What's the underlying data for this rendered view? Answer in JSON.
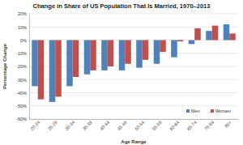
{
  "chart_data": {
    "type": "bar",
    "title": "Change in Share of US Population That Is Married, 1970–2013",
    "x_label": "Age Range",
    "y_label": "Percentage Change",
    "categories": [
      "20-24",
      "25-29",
      "30-34",
      "35-39",
      "40-44",
      "45-49",
      "50-54",
      "55-59",
      "60-64",
      "65-74",
      "75-84",
      "85+"
    ],
    "series": [
      {
        "name": "Men",
        "color": "#4f81bd",
        "values": [
          -35,
          -47,
          -35,
          -26,
          -23,
          -23,
          -21,
          -18,
          -13,
          -3,
          7,
          12
        ]
      },
      {
        "name": "Women",
        "color": "#c0504d",
        "values": [
          -45,
          -43,
          -28,
          -23,
          -20,
          -18,
          -15,
          -9,
          -1,
          9,
          11,
          5
        ]
      }
    ],
    "ylim": [
      -60,
      20
    ],
    "yticks": [
      {
        "value": -60,
        "label": "-60%"
      },
      {
        "value": -50,
        "label": "-50%"
      },
      {
        "value": -40,
        "label": "-40%"
      },
      {
        "value": -30,
        "label": "-30%"
      },
      {
        "value": -20,
        "label": "-20%"
      },
      {
        "value": -10,
        "label": "-10%"
      },
      {
        "value": 0,
        "label": "0%"
      },
      {
        "value": 10,
        "label": "10%"
      },
      {
        "value": 20,
        "label": "20%"
      }
    ],
    "grid": true,
    "legend": "bottom-right"
  }
}
